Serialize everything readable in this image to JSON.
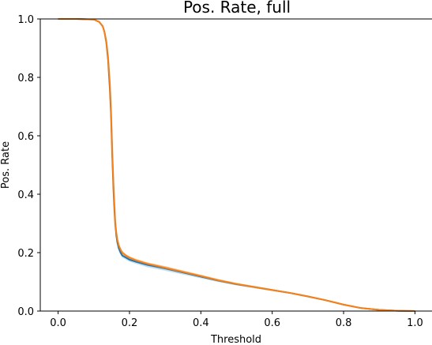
{
  "chart_data": {
    "type": "line",
    "title": "Pos. Rate, full",
    "xlabel": "Threshold",
    "ylabel": "Pos. Rate",
    "xlim": [
      -0.05,
      1.05
    ],
    "ylim": [
      0.0,
      1.0
    ],
    "xticks": [
      0.0,
      0.2,
      0.4,
      0.6,
      0.8,
      1.0
    ],
    "xtick_labels": [
      "0.0",
      "0.2",
      "0.4",
      "0.6",
      "0.8",
      "1.0"
    ],
    "yticks": [
      0.0,
      0.2,
      0.4,
      0.6,
      0.8,
      1.0
    ],
    "ytick_labels": [
      "0.0",
      "0.2",
      "0.4",
      "0.6",
      "0.8",
      "1.0"
    ],
    "grid": false,
    "series": [
      {
        "color": "#1f77b4",
        "band_color": "#9ecae1",
        "x": [
          0.0,
          0.05,
          0.1,
          0.115,
          0.125,
          0.13,
          0.135,
          0.14,
          0.145,
          0.148,
          0.15,
          0.152,
          0.155,
          0.158,
          0.16,
          0.163,
          0.166,
          0.17,
          0.175,
          0.18,
          0.19,
          0.2,
          0.22,
          0.25,
          0.3,
          0.35,
          0.4,
          0.45,
          0.5,
          0.55,
          0.6,
          0.65,
          0.7,
          0.75,
          0.8,
          0.85,
          0.9,
          0.95,
          1.0
        ],
        "y": [
          1.0,
          1.0,
          0.998,
          0.99,
          0.975,
          0.955,
          0.92,
          0.86,
          0.76,
          0.68,
          0.6,
          0.52,
          0.42,
          0.34,
          0.3,
          0.26,
          0.235,
          0.215,
          0.2,
          0.19,
          0.183,
          0.176,
          0.168,
          0.158,
          0.146,
          0.132,
          0.118,
          0.104,
          0.092,
          0.082,
          0.072,
          0.062,
          0.05,
          0.037,
          0.022,
          0.01,
          0.004,
          0.001,
          0.0
        ],
        "band": [
          0.0,
          0.0,
          0.001,
          0.002,
          0.003,
          0.004,
          0.006,
          0.008,
          0.01,
          0.012,
          0.014,
          0.016,
          0.018,
          0.016,
          0.014,
          0.012,
          0.01,
          0.009,
          0.008,
          0.007,
          0.007,
          0.007,
          0.007,
          0.008,
          0.008,
          0.007,
          0.006,
          0.005,
          0.004,
          0.004,
          0.003,
          0.003,
          0.003,
          0.002,
          0.002,
          0.001,
          0.001,
          0.0,
          0.0
        ]
      },
      {
        "color": "#ff7f0e",
        "band_color": "#ffbb78",
        "x": [
          0.0,
          0.05,
          0.1,
          0.115,
          0.125,
          0.13,
          0.135,
          0.14,
          0.145,
          0.148,
          0.15,
          0.152,
          0.155,
          0.158,
          0.16,
          0.163,
          0.166,
          0.17,
          0.175,
          0.18,
          0.19,
          0.2,
          0.22,
          0.25,
          0.3,
          0.35,
          0.4,
          0.45,
          0.5,
          0.55,
          0.6,
          0.65,
          0.7,
          0.75,
          0.8,
          0.85,
          0.9,
          0.95,
          1.0
        ],
        "y": [
          1.0,
          1.0,
          0.998,
          0.99,
          0.975,
          0.955,
          0.925,
          0.87,
          0.78,
          0.7,
          0.62,
          0.54,
          0.44,
          0.36,
          0.31,
          0.27,
          0.245,
          0.225,
          0.21,
          0.2,
          0.19,
          0.183,
          0.173,
          0.162,
          0.148,
          0.134,
          0.12,
          0.105,
          0.093,
          0.082,
          0.072,
          0.062,
          0.05,
          0.037,
          0.022,
          0.01,
          0.004,
          0.001,
          0.0
        ],
        "band": [
          0.0,
          0.0,
          0.001,
          0.002,
          0.003,
          0.004,
          0.005,
          0.006,
          0.008,
          0.009,
          0.01,
          0.011,
          0.012,
          0.011,
          0.01,
          0.009,
          0.008,
          0.007,
          0.006,
          0.006,
          0.005,
          0.005,
          0.005,
          0.005,
          0.005,
          0.005,
          0.004,
          0.004,
          0.003,
          0.003,
          0.003,
          0.002,
          0.002,
          0.002,
          0.001,
          0.001,
          0.0,
          0.0,
          0.0
        ]
      }
    ]
  }
}
